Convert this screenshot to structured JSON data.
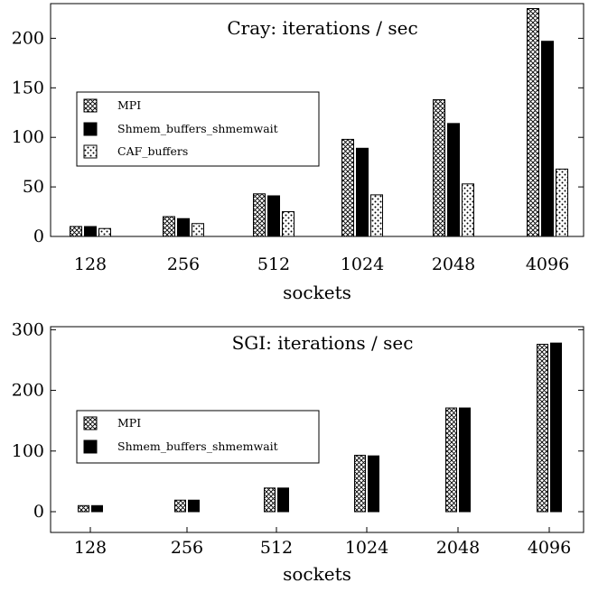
{
  "chart_data": [
    {
      "type": "bar",
      "title": "Cray: iterations / sec",
      "xlabel": "sockets",
      "ylabel": "",
      "categories": [
        "128",
        "256",
        "512",
        "1024",
        "2048",
        "4096"
      ],
      "series": [
        {
          "name": "MPI",
          "pattern": "crosshatch",
          "values": [
            10,
            20,
            43,
            98,
            138,
            230
          ]
        },
        {
          "name": "Shmem_buffers_shmemwait",
          "pattern": "solid",
          "values": [
            10,
            18,
            41,
            89,
            114,
            197
          ]
        },
        {
          "name": "CAF_buffers",
          "pattern": "dots",
          "values": [
            8,
            13,
            25,
            42,
            53,
            68
          ]
        }
      ],
      "ylim": [
        0,
        235
      ],
      "yticks": [
        0,
        50,
        100,
        150,
        200
      ],
      "legend_position": "center-left",
      "grid": false
    },
    {
      "type": "bar",
      "title": "SGI: iterations / sec",
      "xlabel": "sockets",
      "ylabel": "",
      "categories": [
        "128",
        "256",
        "512",
        "1024",
        "2048",
        "4096"
      ],
      "series": [
        {
          "name": "MPI",
          "pattern": "crosshatch",
          "values": [
            10,
            19,
            39,
            93,
            171,
            276
          ]
        },
        {
          "name": "Shmem_buffers_shmemwait",
          "pattern": "solid",
          "values": [
            10,
            19,
            39,
            92,
            171,
            278
          ]
        }
      ],
      "ylim": [
        -12,
        305
      ],
      "yticks": [
        0,
        100,
        200,
        300
      ],
      "legend_position": "center-left",
      "grid": false
    }
  ]
}
